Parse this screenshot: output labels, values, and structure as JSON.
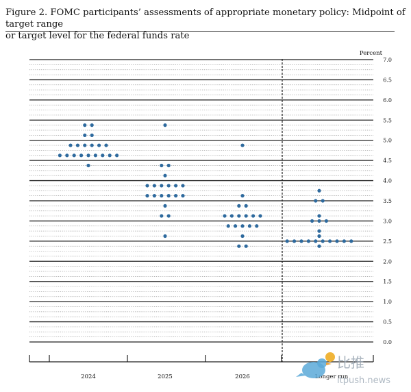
{
  "figure": {
    "title_line1": "Figure 2.  FOMC participants’ assessments of appropriate monetary policy:  Midpoint of target range",
    "title_line2": "or target level for the federal funds rate"
  },
  "chart_data": {
    "type": "scatter",
    "subtype": "dot plot",
    "ylabel": "Percent",
    "ylim": [
      0,
      7.0
    ],
    "y_ticks": [
      "0.0",
      "0.5",
      "1.0",
      "1.5",
      "2.0",
      "2.5",
      "3.0",
      "3.5",
      "4.0",
      "4.5",
      "5.0",
      "5.5",
      "6.0",
      "6.5",
      "7.0"
    ],
    "y_minor_step": 0.125,
    "grid": true,
    "categories": [
      "2024",
      "2025",
      "2026",
      "Longer run"
    ],
    "series": [
      {
        "values": [
          {
            "y": 5.375,
            "count": 2
          },
          {
            "y": 5.125,
            "count": 2
          },
          {
            "y": 4.875,
            "count": 6
          },
          {
            "y": 4.625,
            "count": 9
          },
          {
            "y": 4.375,
            "count": 1
          }
        ]
      },
      {
        "values": [
          {
            "y": 5.375,
            "count": 1
          },
          {
            "y": 4.375,
            "count": 2
          },
          {
            "y": 4.125,
            "count": 1
          },
          {
            "y": 3.875,
            "count": 6
          },
          {
            "y": 3.625,
            "count": 6
          },
          {
            "y": 3.375,
            "count": 1
          },
          {
            "y": 3.125,
            "count": 2
          },
          {
            "y": 2.625,
            "count": 1
          }
        ]
      },
      {
        "values": [
          {
            "y": 4.875,
            "count": 1
          },
          {
            "y": 3.625,
            "count": 1
          },
          {
            "y": 3.375,
            "count": 2
          },
          {
            "y": 3.125,
            "count": 6
          },
          {
            "y": 2.875,
            "count": 5
          },
          {
            "y": 2.625,
            "count": 1
          },
          {
            "y": 2.375,
            "count": 2
          }
        ]
      },
      {
        "values": [
          {
            "y": 3.75,
            "count": 1
          },
          {
            "y": 3.5,
            "count": 2
          },
          {
            "y": 3.125,
            "count": 1
          },
          {
            "y": 3.0,
            "count": 3
          },
          {
            "y": 2.75,
            "count": 1
          },
          {
            "y": 2.625,
            "count": 1
          },
          {
            "y": 2.5,
            "count": 10
          },
          {
            "y": 2.375,
            "count": 1
          }
        ]
      }
    ],
    "dot_color": "#2e6a9e"
  },
  "watermark": {
    "text1": "比推",
    "text2": "itpush.news"
  }
}
